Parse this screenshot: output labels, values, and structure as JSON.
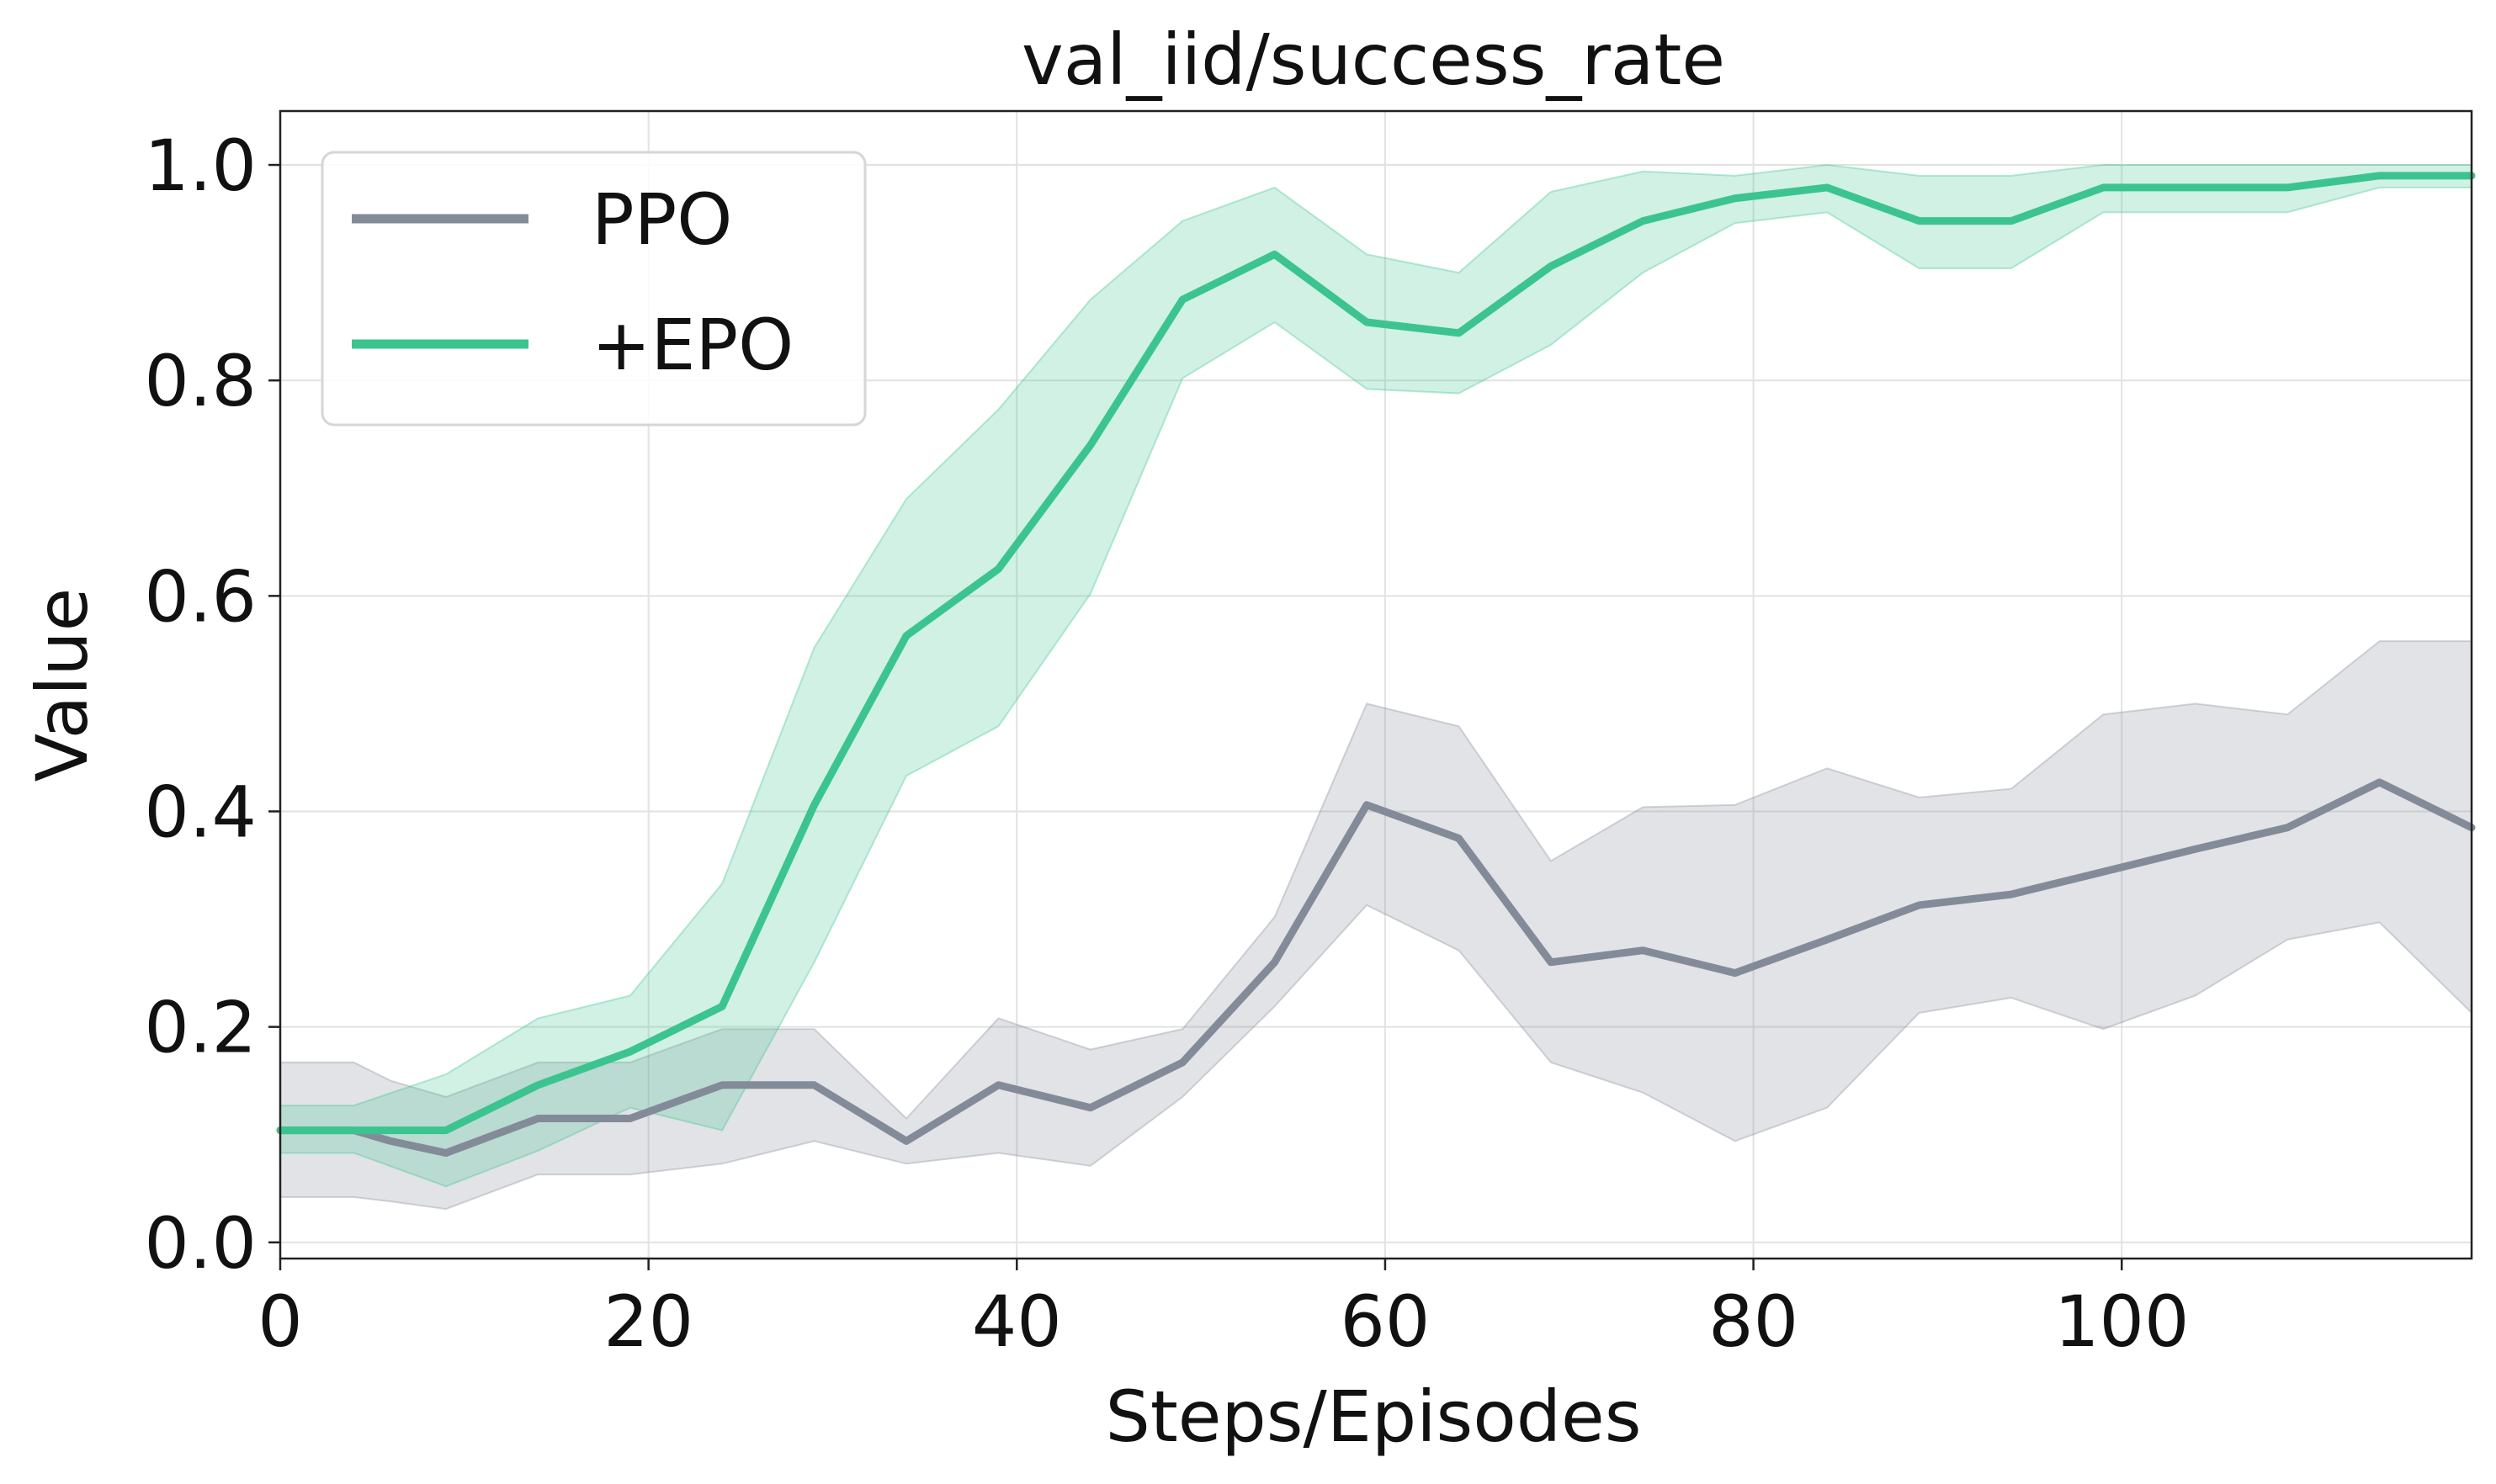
{
  "chart_data": {
    "type": "line",
    "title": "val_iid/success_rate",
    "xlabel": "Steps/Episodes",
    "ylabel": "Value",
    "xlim": [
      0,
      119
    ],
    "ylim": [
      -0.015,
      1.05
    ],
    "x_ticks": [
      0,
      20,
      40,
      60,
      80,
      100
    ],
    "y_ticks": [
      0.0,
      0.2,
      0.4,
      0.6,
      0.8,
      1.0
    ],
    "x_tick_labels": [
      "0",
      "20",
      "40",
      "60",
      "80",
      "100"
    ],
    "y_tick_labels": [
      "0.0",
      "0.2",
      "0.4",
      "0.6",
      "0.8",
      "1.0"
    ],
    "grid": true,
    "legend_position": "top-left",
    "series": [
      {
        "name": "PPO",
        "color": "#848b98",
        "x": [
          0,
          4,
          6,
          9,
          14,
          19,
          24,
          29,
          34,
          39,
          44,
          49,
          54,
          59,
          64,
          69,
          74,
          79,
          84,
          89,
          94,
          99,
          104,
          109,
          114,
          119
        ],
        "y": [
          0.104,
          0.104,
          0.094,
          0.083,
          0.115,
          0.115,
          0.146,
          0.146,
          0.094,
          0.146,
          0.125,
          0.167,
          0.26,
          0.406,
          0.375,
          0.26,
          0.271,
          0.25,
          0.281,
          0.313,
          0.323,
          0.344,
          0.365,
          0.385,
          0.427,
          0.385
        ],
        "lower": [
          0.042,
          0.042,
          0.038,
          0.031,
          0.063,
          0.063,
          0.073,
          0.094,
          0.073,
          0.083,
          0.071,
          0.135,
          0.219,
          0.313,
          0.271,
          0.167,
          0.139,
          0.094,
          0.125,
          0.213,
          0.227,
          0.198,
          0.229,
          0.281,
          0.297,
          0.213
        ],
        "upper": [
          0.167,
          0.167,
          0.15,
          0.135,
          0.167,
          0.167,
          0.198,
          0.198,
          0.115,
          0.208,
          0.179,
          0.198,
          0.302,
          0.5,
          0.479,
          0.354,
          0.404,
          0.406,
          0.44,
          0.413,
          0.421,
          0.49,
          0.5,
          0.49,
          0.558,
          0.558
        ]
      },
      {
        "name": "+EPO",
        "color": "#3cc490",
        "x": [
          0,
          4,
          9,
          14,
          19,
          24,
          29,
          34,
          39,
          44,
          49,
          54,
          59,
          64,
          69,
          74,
          79,
          84,
          89,
          94,
          99,
          104,
          109,
          114,
          119
        ],
        "y": [
          0.104,
          0.104,
          0.104,
          0.146,
          0.177,
          0.219,
          0.406,
          0.563,
          0.625,
          0.74,
          0.875,
          0.917,
          0.854,
          0.844,
          0.906,
          0.948,
          0.969,
          0.979,
          0.948,
          0.948,
          0.979,
          0.979,
          0.979,
          0.99,
          0.99
        ],
        "lower": [
          0.083,
          0.083,
          0.052,
          0.085,
          0.125,
          0.104,
          0.26,
          0.433,
          0.479,
          0.602,
          0.802,
          0.854,
          0.792,
          0.788,
          0.833,
          0.9,
          0.946,
          0.956,
          0.904,
          0.904,
          0.956,
          0.956,
          0.956,
          0.979,
          0.979
        ],
        "upper": [
          0.127,
          0.127,
          0.156,
          0.208,
          0.229,
          0.333,
          0.552,
          0.69,
          0.773,
          0.875,
          0.948,
          0.979,
          0.917,
          0.9,
          0.975,
          0.994,
          0.99,
          1.0,
          0.99,
          0.99,
          1.0,
          1.0,
          1.0,
          1.0,
          1.0
        ]
      }
    ]
  }
}
